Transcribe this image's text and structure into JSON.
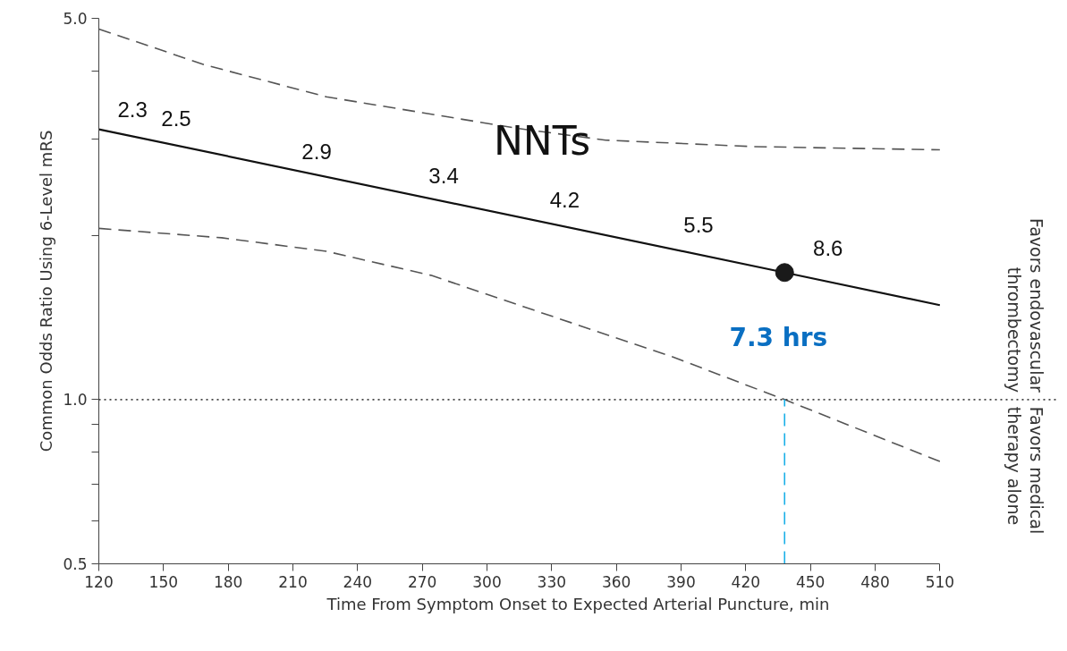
{
  "chart_data": {
    "type": "line",
    "xlabel": "Time From Symptom Onset to Expected Arterial Puncture, min",
    "ylabel": "Common Odds Ratio Using 6-Level mRS",
    "log": "y",
    "grid": false,
    "marker": "none",
    "xlim": [
      120,
      510
    ],
    "xticks": [
      120,
      150,
      180,
      210,
      240,
      270,
      300,
      330,
      360,
      390,
      420,
      450,
      480,
      510
    ],
    "ylim": [
      0.5,
      5.0
    ],
    "yticks": [
      0.5,
      {
        "value": 0.6,
        "label": null
      },
      {
        "value": 0.7,
        "label": null
      },
      {
        "value": 0.8,
        "label": null
      },
      {
        "value": 0.9,
        "label": null
      },
      {
        "value": 1.0,
        "label": "1.0"
      },
      {
        "value": 2,
        "label": null
      },
      {
        "value": 3,
        "label": null
      },
      {
        "value": 4,
        "label": null
      },
      {
        "value": 5.0,
        "label": "5.0"
      }
    ],
    "series": [
      {
        "color": "#555555",
        "line_style": "dashed",
        "x": [
          120,
          169,
          225.5,
          314.6,
          355,
          423,
          510
        ],
        "values": [
          4.78,
          4.11,
          3.59,
          3.14,
          2.99,
          2.91,
          2.87
        ]
      },
      {
        "color": "#111111",
        "line_style": "solid",
        "x": [
          120,
          438,
          510
        ],
        "values": [
          3.13,
          1.71,
          1.49
        ]
      },
      {
        "color": "#555555",
        "line_style": "dashed",
        "x": [
          120,
          177,
          225.5,
          274,
          317,
          385.5,
          438,
          510
        ],
        "values": [
          2.06,
          1.98,
          1.87,
          1.69,
          1.48,
          1.2,
          1.0,
          0.77
        ]
      },
      {
        "type": "scatter",
        "marker": "circle",
        "color": "#1a1a1a",
        "x": [
          438
        ],
        "values": [
          1.71
        ]
      },
      {
        "color": "#1ab0e8",
        "line_style": "dashed",
        "x": [
          438,
          438
        ],
        "values": [
          0.5,
          1.0
        ]
      }
    ],
    "ref_lines": [
      {
        "axis": "y",
        "value": 1.0,
        "color": "#444444",
        "line_style": "dotted"
      }
    ],
    "annotations": [
      "2.3",
      "2.5",
      "2.9",
      "3.4",
      "4.2",
      "5.5",
      "8.6",
      "NNTs",
      "7.3 hrs",
      "Favors endovascular\nthrombectomy",
      "Favors medical\ntherapy alone"
    ]
  }
}
